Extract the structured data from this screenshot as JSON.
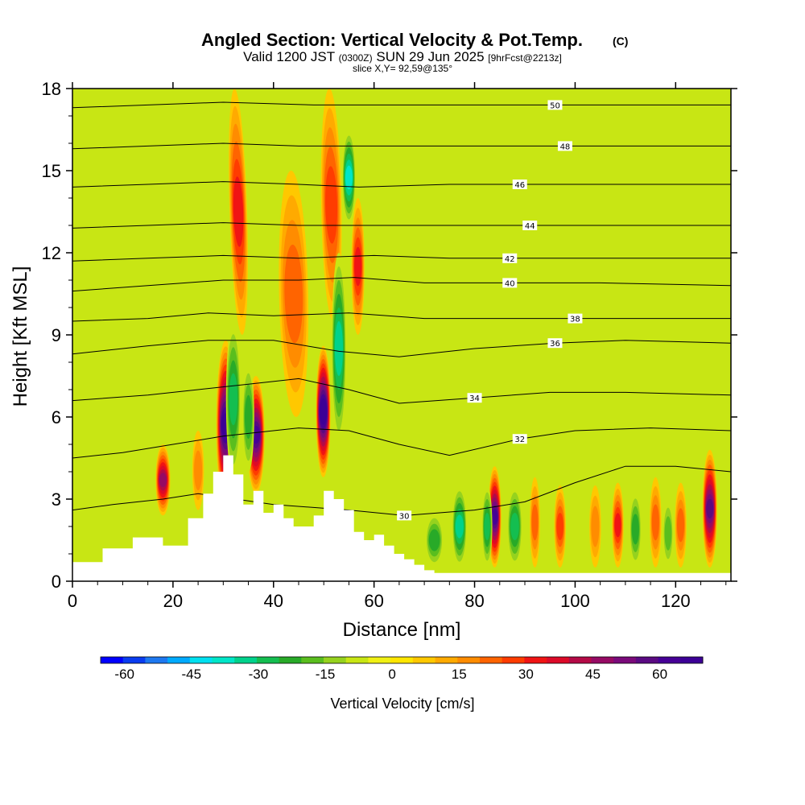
{
  "chart_data": {
    "type": "heatmap",
    "title": "Angled Section: Vertical Velocity & Pot.Temp.",
    "title_unit": "(C)",
    "subtitle_parts": [
      "Valid 1200 JST",
      "(0300Z)",
      "SUN 29 Jun 2025",
      "[9hrFcst@2213z]"
    ],
    "slice_text": "slice X,Y= 92,59@135°",
    "xlabel": "Distance [nm]",
    "ylabel": "Height [Kft MSL]",
    "xlim": [
      0,
      131
    ],
    "ylim": [
      0,
      18
    ],
    "x_ticks": [
      0,
      20,
      40,
      60,
      80,
      100,
      120
    ],
    "y_ticks": [
      0,
      3,
      6,
      9,
      12,
      15,
      18
    ],
    "colorbar": {
      "label": "Vertical Velocity [cm/s]",
      "min": -65,
      "max": 70,
      "step": 5,
      "ticks": [
        "-60",
        "-45",
        "-30",
        "-15",
        "0",
        "15",
        "30",
        "45",
        "60"
      ],
      "colors": [
        "#0000ff",
        "#0a3cf0",
        "#1e78f0",
        "#00aaff",
        "#00e0f0",
        "#00e6c8",
        "#00d28c",
        "#14be50",
        "#28aa28",
        "#5abe1e",
        "#96d21e",
        "#c8e614",
        "#f0f014",
        "#ffe600",
        "#ffc800",
        "#ffaa00",
        "#ff8c00",
        "#ff6400",
        "#ff3c00",
        "#f01414",
        "#dc0a28",
        "#b40a46",
        "#960a64",
        "#7a0a7a",
        "#5a0a82",
        "#460096",
        "#3c0096"
      ]
    },
    "terrain": {
      "x": [
        0,
        6,
        12,
        18,
        23,
        26,
        28,
        30,
        32,
        34,
        36,
        38,
        40,
        42,
        44,
        46,
        48,
        50,
        52,
        54,
        56,
        58,
        60,
        62,
        64,
        66,
        68,
        70,
        72,
        131
      ],
      "y": [
        0.7,
        1.2,
        1.6,
        1.3,
        2.3,
        3.2,
        4.0,
        4.6,
        3.9,
        2.8,
        3.3,
        2.5,
        2.8,
        2.3,
        2.0,
        2.0,
        2.4,
        3.3,
        3.0,
        2.6,
        1.8,
        1.5,
        1.7,
        1.3,
        1.0,
        0.8,
        0.6,
        0.4,
        0.3,
        0.3
      ]
    },
    "theta_contours": [
      {
        "level": "30",
        "label_at": [
          66,
          2.4
        ],
        "points": [
          [
            0,
            2.6
          ],
          [
            8,
            2.8
          ],
          [
            18,
            3.0
          ],
          [
            25,
            3.2
          ],
          [
            40,
            2.8
          ],
          [
            55,
            2.6
          ],
          [
            66,
            2.4
          ],
          [
            80,
            2.6
          ],
          [
            90,
            2.9
          ],
          [
            100,
            3.6
          ],
          [
            110,
            4.2
          ],
          [
            120,
            4.2
          ],
          [
            131,
            4.0
          ]
        ]
      },
      {
        "level": "32",
        "label_at": [
          89,
          5.2
        ],
        "points": [
          [
            0,
            4.5
          ],
          [
            10,
            4.7
          ],
          [
            20,
            5.0
          ],
          [
            30,
            5.3
          ],
          [
            45,
            5.6
          ],
          [
            55,
            5.5
          ],
          [
            65,
            5.0
          ],
          [
            75,
            4.6
          ],
          [
            89,
            5.2
          ],
          [
            100,
            5.5
          ],
          [
            115,
            5.6
          ],
          [
            131,
            5.5
          ]
        ]
      },
      {
        "level": "34",
        "label_at": [
          80,
          6.7
        ],
        "points": [
          [
            0,
            6.6
          ],
          [
            15,
            6.8
          ],
          [
            25,
            7.0
          ],
          [
            35,
            7.2
          ],
          [
            45,
            7.4
          ],
          [
            55,
            7.0
          ],
          [
            65,
            6.5
          ],
          [
            80,
            6.7
          ],
          [
            95,
            6.9
          ],
          [
            110,
            6.9
          ],
          [
            131,
            6.8
          ]
        ]
      },
      {
        "level": "36",
        "label_at": [
          96,
          8.7
        ],
        "points": [
          [
            0,
            8.3
          ],
          [
            15,
            8.6
          ],
          [
            27,
            8.8
          ],
          [
            40,
            8.8
          ],
          [
            53,
            8.4
          ],
          [
            65,
            8.2
          ],
          [
            80,
            8.5
          ],
          [
            96,
            8.7
          ],
          [
            110,
            8.8
          ],
          [
            131,
            8.7
          ]
        ]
      },
      {
        "level": "38",
        "label_at": [
          100,
          9.6
        ],
        "points": [
          [
            0,
            9.5
          ],
          [
            15,
            9.6
          ],
          [
            27,
            9.8
          ],
          [
            40,
            9.7
          ],
          [
            55,
            9.8
          ],
          [
            70,
            9.6
          ],
          [
            85,
            9.6
          ],
          [
            100,
            9.6
          ],
          [
            115,
            9.6
          ],
          [
            131,
            9.6
          ]
        ]
      },
      {
        "level": "40",
        "label_at": [
          87,
          10.9
        ],
        "points": [
          [
            0,
            10.6
          ],
          [
            15,
            10.8
          ],
          [
            30,
            11.0
          ],
          [
            45,
            11.0
          ],
          [
            56,
            11.1
          ],
          [
            70,
            10.9
          ],
          [
            87,
            10.9
          ],
          [
            105,
            10.9
          ],
          [
            131,
            10.8
          ]
        ]
      },
      {
        "level": "42",
        "label_at": [
          87,
          11.8
        ],
        "points": [
          [
            0,
            11.7
          ],
          [
            15,
            11.8
          ],
          [
            30,
            11.9
          ],
          [
            45,
            11.8
          ],
          [
            60,
            11.9
          ],
          [
            75,
            11.8
          ],
          [
            87,
            11.8
          ],
          [
            105,
            11.8
          ],
          [
            131,
            11.8
          ]
        ]
      },
      {
        "level": "44",
        "label_at": [
          91,
          13.0
        ],
        "points": [
          [
            0,
            12.9
          ],
          [
            15,
            13.0
          ],
          [
            30,
            13.1
          ],
          [
            45,
            13.0
          ],
          [
            57,
            13.0
          ],
          [
            75,
            13.0
          ],
          [
            91,
            13.0
          ],
          [
            110,
            13.0
          ],
          [
            131,
            13.0
          ]
        ]
      },
      {
        "level": "46",
        "label_at": [
          89,
          14.5
        ],
        "points": [
          [
            0,
            14.4
          ],
          [
            15,
            14.5
          ],
          [
            30,
            14.6
          ],
          [
            45,
            14.5
          ],
          [
            57,
            14.4
          ],
          [
            75,
            14.5
          ],
          [
            89,
            14.5
          ],
          [
            110,
            14.5
          ],
          [
            131,
            14.5
          ]
        ]
      },
      {
        "level": "48",
        "label_at": [
          98,
          15.9
        ],
        "points": [
          [
            0,
            15.8
          ],
          [
            15,
            15.9
          ],
          [
            30,
            16.0
          ],
          [
            45,
            15.9
          ],
          [
            57,
            15.9
          ],
          [
            75,
            15.9
          ],
          [
            98,
            15.9
          ],
          [
            115,
            15.9
          ],
          [
            131,
            15.9
          ]
        ]
      },
      {
        "level": "50",
        "label_at": [
          96,
          17.4
        ],
        "points": [
          [
            0,
            17.3
          ],
          [
            15,
            17.4
          ],
          [
            30,
            17.5
          ],
          [
            48,
            17.4
          ],
          [
            65,
            17.4
          ],
          [
            80,
            17.4
          ],
          [
            96,
            17.4
          ],
          [
            115,
            17.4
          ],
          [
            131,
            17.4
          ]
        ]
      }
    ],
    "w_features": [
      {
        "x": 30.5,
        "y0": 2.6,
        "y1": 8.8,
        "w": 1.3,
        "v": 65
      },
      {
        "x": 33.0,
        "y0": 9.0,
        "y1": 18,
        "w": 1.2,
        "v": 30,
        "tilt": -1.8
      },
      {
        "x": 32.0,
        "y0": 3.8,
        "y1": 9.5,
        "w": 1.0,
        "v": -25
      },
      {
        "x": 36.5,
        "y0": 3.2,
        "y1": 7.5,
        "w": 1.2,
        "v": 60
      },
      {
        "x": 35.0,
        "y0": 4.0,
        "y1": 8.0,
        "w": 0.8,
        "v": -20
      },
      {
        "x": 44.0,
        "y0": 6.0,
        "y1": 15.0,
        "w": 2.0,
        "v": 20,
        "tilt": -1.2
      },
      {
        "x": 49.9,
        "y0": 3.8,
        "y1": 8.6,
        "w": 1.0,
        "v": 70
      },
      {
        "x": 51.5,
        "y0": 9.5,
        "y1": 18,
        "w": 1.4,
        "v": 28,
        "tilt": -1.0
      },
      {
        "x": 53.0,
        "y0": 5.0,
        "y1": 12.0,
        "w": 1.0,
        "v": -30
      },
      {
        "x": 56.8,
        "y0": 9.0,
        "y1": 14.0,
        "w": 0.9,
        "v": 30
      },
      {
        "x": 55.0,
        "y0": 13.0,
        "y1": 16.5,
        "w": 0.9,
        "v": -35
      },
      {
        "x": 18.0,
        "y0": 2.4,
        "y1": 5.0,
        "w": 1.0,
        "v": 45
      },
      {
        "x": 25.0,
        "y0": 2.6,
        "y1": 5.5,
        "w": 0.8,
        "v": 18
      },
      {
        "x": 84.0,
        "y0": 0.5,
        "y1": 4.2,
        "w": 0.9,
        "v": 60
      },
      {
        "x": 82.5,
        "y0": 0.5,
        "y1": 3.5,
        "w": 0.7,
        "v": -25
      },
      {
        "x": 77.0,
        "y0": 0.5,
        "y1": 3.5,
        "w": 1.0,
        "v": -30
      },
      {
        "x": 88.0,
        "y0": 0.5,
        "y1": 3.5,
        "w": 1.0,
        "v": -25
      },
      {
        "x": 92.0,
        "y0": 0.5,
        "y1": 3.8,
        "w": 0.7,
        "v": 20
      },
      {
        "x": 97.0,
        "y0": 0.5,
        "y1": 3.5,
        "w": 0.8,
        "v": 25
      },
      {
        "x": 104.0,
        "y0": 0.5,
        "y1": 3.5,
        "w": 0.8,
        "v": 18
      },
      {
        "x": 108.5,
        "y0": 0.5,
        "y1": 3.6,
        "w": 0.8,
        "v": 30
      },
      {
        "x": 112.0,
        "y0": 0.5,
        "y1": 3.3,
        "w": 0.8,
        "v": -20
      },
      {
        "x": 116.0,
        "y0": 0.5,
        "y1": 3.8,
        "w": 0.8,
        "v": 20
      },
      {
        "x": 118.5,
        "y0": 0.5,
        "y1": 3.0,
        "w": 0.7,
        "v": -18
      },
      {
        "x": 121.0,
        "y0": 0.5,
        "y1": 3.6,
        "w": 0.8,
        "v": 22
      },
      {
        "x": 126.8,
        "y0": 0.5,
        "y1": 4.8,
        "w": 1.0,
        "v": 55
      },
      {
        "x": 72.0,
        "y0": 0.5,
        "y1": 2.5,
        "w": 1.2,
        "v": -20
      }
    ]
  }
}
